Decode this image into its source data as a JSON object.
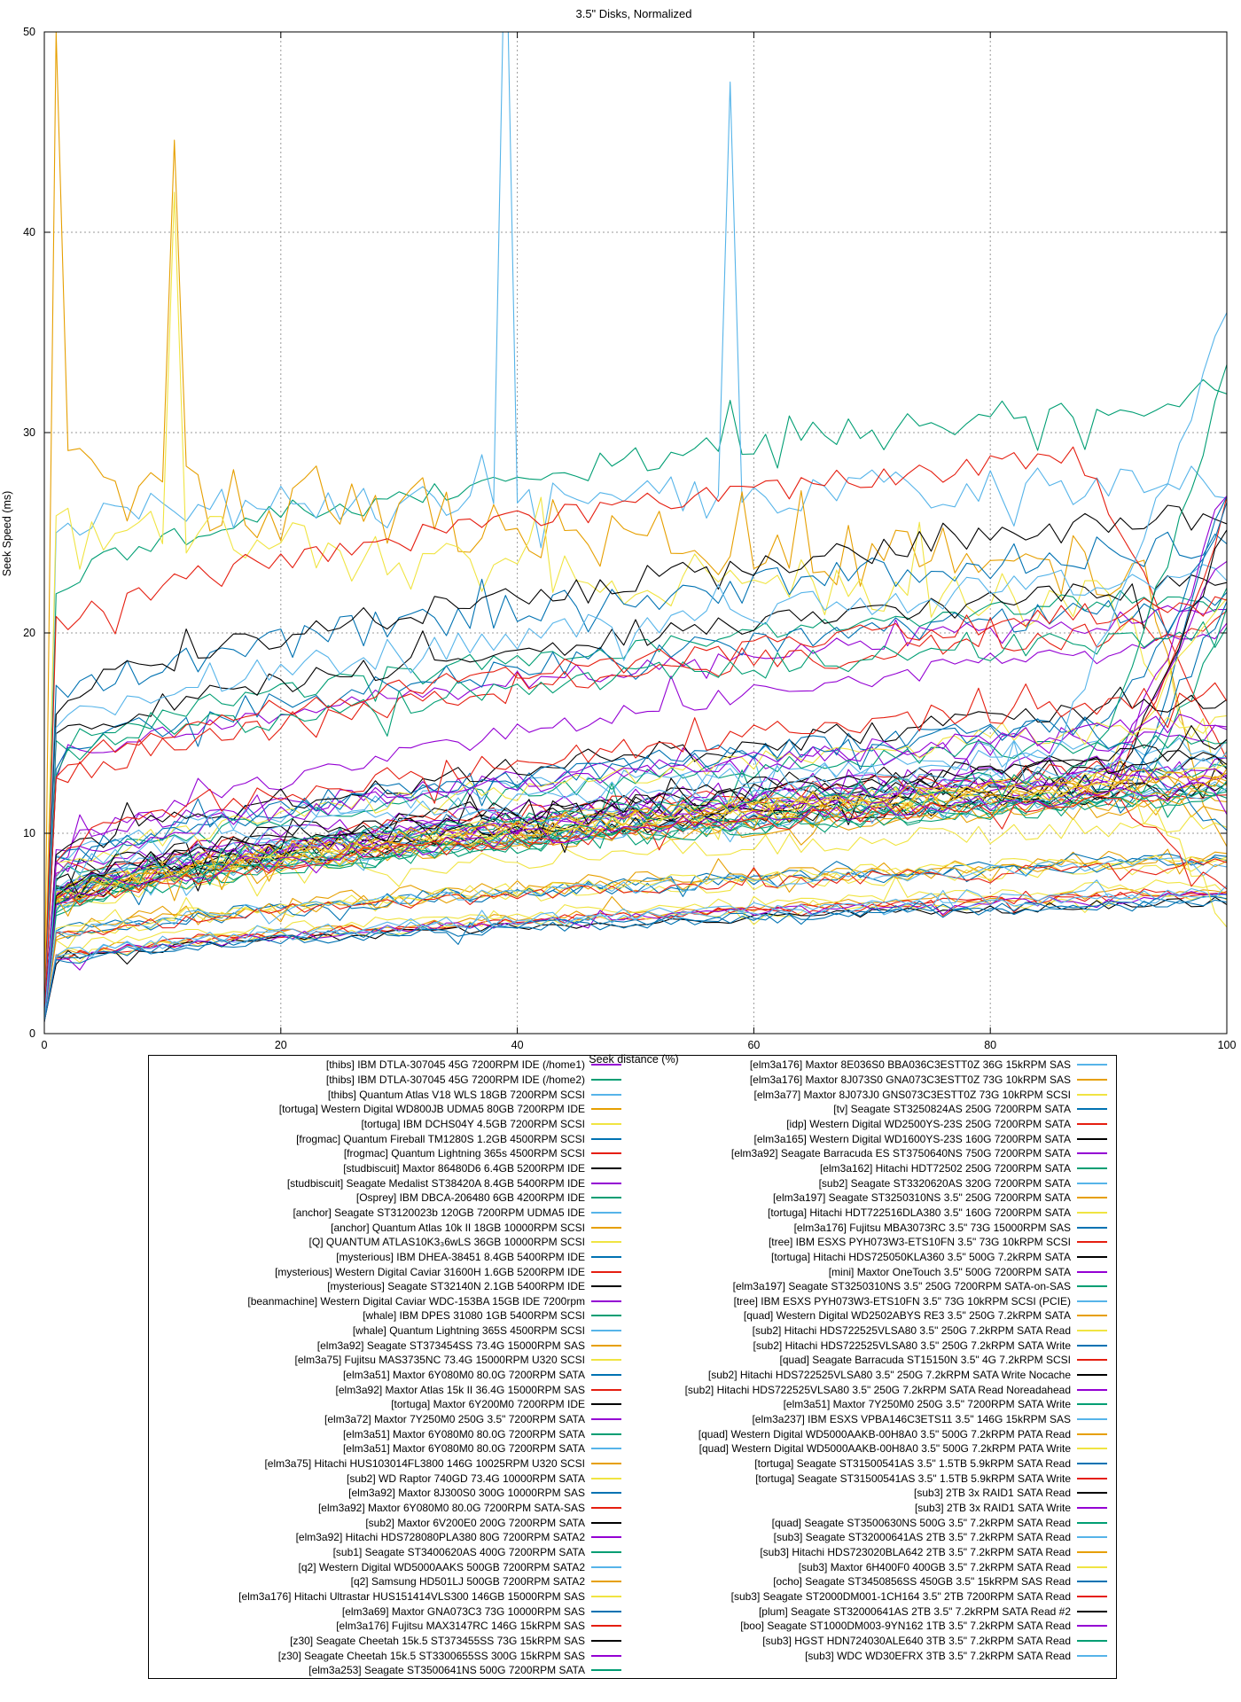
{
  "title": "3.5\" Disks, Normalized",
  "axes": {
    "xlabel": "Seek distance (%)",
    "ylabel": "Seek Speed (ms)"
  },
  "chart_data": {
    "type": "line",
    "title": "3.5\" Disks, Normalized",
    "xlabel": "Seek distance (%)",
    "ylabel": "Seek Speed (ms)",
    "xlim": [
      0,
      100
    ],
    "ylim": [
      0,
      50
    ],
    "x_ticks": [
      0,
      20,
      40,
      60,
      80,
      100
    ],
    "y_ticks": [
      0,
      10,
      20,
      30,
      40,
      50
    ],
    "grid": "dashed gray at major ticks",
    "legend_position": "below plot, two columns, right-aligned labels with line samples",
    "palette": [
      "#9400d3",
      "#009e73",
      "#56b4e9",
      "#e69f00",
      "#f0e442",
      "#0072b2",
      "#e51e10",
      "#000000"
    ],
    "series_note": "83 seek-speed curves; each rises from ~0 ms at 0% seek distance; y1=value near 1%, y100=value at 100% (estimated from pixels), noise=jitter amplitude (ms), spikes=[x,y] outliers, end=[from_x, final_y] end-of-range divergence",
    "series": [
      {
        "l": "[thibs] IBM DTLA-307045 45G 7200RPM IDE (/home1)",
        "a": 7.5,
        "b": 20,
        "n": 0.5
      },
      {
        "l": "[thibs] IBM DTLA-307045 45G 7200RPM IDE (/home2)",
        "a": 21.5,
        "b": 32,
        "n": 0.8
      },
      {
        "l": "[thibs] Quantum Atlas V18 WLS 18GB 7200RPM SCSI",
        "a": 25.5,
        "b": 27.5,
        "n": 1.0,
        "s": [
          [
            39,
            57
          ],
          [
            58,
            47.5
          ]
        ]
      },
      {
        "l": "[tortuga] Western Digital WD800JB UDMA5 80GB 7200RPM IDE",
        "a": 28.5,
        "b": 23,
        "n": 1.7,
        "s": [
          [
            1,
            50
          ],
          [
            11,
            44.6
          ]
        ],
        "e": [
          92,
          9
        ]
      },
      {
        "l": "[tortuga] IBM DCHS04Y 4.5GB 7200RPM SCSI",
        "a": 26.5,
        "b": 21,
        "n": 1.5,
        "s": [
          [
            11,
            42
          ]
        ],
        "e": [
          90,
          13
        ]
      },
      {
        "l": "[frogmac] Quantum Fireball TM1280S 1.2GB 4500RPM SCSI",
        "a": 16,
        "b": 24.5,
        "n": 0.9
      },
      {
        "l": "[frogmac] Quantum Lightning 365s 4500RPM SCSI",
        "a": 19.5,
        "b": 29.5,
        "n": 0.7,
        "e": [
          87,
          14
        ]
      },
      {
        "l": "[studbiscuit] Maxtor 86480D6 6.4GB 5200RPM IDE",
        "a": 15.5,
        "b": 26,
        "n": 0.7
      },
      {
        "l": "[studbiscuit] Seagate Medalist ST38420A 8.4GB 5400RPM IDE",
        "a": 12.5,
        "b": 21,
        "n": 0.6
      },
      {
        "l": "[Osprey] IBM DBCA-206480 6GB 4200RPM IDE",
        "a": 13.5,
        "b": 22,
        "n": 0.6
      },
      {
        "l": "[anchor] Seagate ST3120023b 120GB 7200RPM UDMA5 IDE",
        "a": 8.5,
        "b": 14.5,
        "n": 0.6
      },
      {
        "l": "[anchor] Quantum Atlas 10k II 18GB 10000RPM SCSI",
        "a": 6.5,
        "b": 11.5,
        "n": 0.5
      },
      {
        "l": "[Q] QUANTUM ATLAS10K3₃6wLS 36GB 10000RPM SCSI",
        "a": 6,
        "b": 10.5,
        "n": 0.5
      },
      {
        "l": "[mysterious] IBM DHEA-38451 8.4GB 5400RPM IDE",
        "a": 13,
        "b": 21.5,
        "n": 0.7
      },
      {
        "l": "[mysterious] Western Digital Caviar 31600H 1.6GB 5200RPM IDE",
        "a": 12,
        "b": 20.5,
        "n": 0.7
      },
      {
        "l": "[mysterious] Seagate ST32140N 2.1GB 5400RPM IDE",
        "a": 14,
        "b": 22.5,
        "n": 0.6
      },
      {
        "l": "[beanmachine] Western Digital Caviar WDC-153BA 15GB IDE 7200rpm",
        "a": 9,
        "b": 15,
        "n": 0.6
      },
      {
        "l": "[whale] IBM DPES 31080 1GB 5400RPM SCSI",
        "a": 13,
        "b": 20,
        "n": 0.7
      },
      {
        "l": "[whale] Quantum Lightning 365S 4500RPM SCSI",
        "a": 15,
        "b": 23,
        "n": 0.8
      },
      {
        "l": "[elm3a92] Seagate ST373454SS 73.4G 15000RPM SAS",
        "a": 3.6,
        "b": 7.2,
        "n": 0.25
      },
      {
        "l": "[elm3a75] Fujitsu MAS3735NC 73.4G 15000RPM U320 SCSI",
        "a": 3.8,
        "b": 7.5,
        "n": 0.3
      },
      {
        "l": "[elm3a51] Maxtor 6Y080M0 80.0G 7200RPM SATA",
        "a": 6.5,
        "b": 13,
        "n": 0.5,
        "e": [
          92,
          22
        ]
      },
      {
        "l": "[elm3a92] Maxtor Atlas 15k II 36.4G 15000RPM SAS",
        "a": 3.5,
        "b": 7,
        "n": 0.25
      },
      {
        "l": "[tortuga] Maxtor 6Y200M0 7200RPM IDE",
        "a": 6.8,
        "b": 13.5,
        "n": 0.5
      },
      {
        "l": "[elm3a72] Maxtor 7Y250M0 250G 3.5\" 7200RPM SATA",
        "a": 7,
        "b": 14,
        "n": 0.5,
        "e": [
          90,
          24
        ]
      },
      {
        "l": "[elm3a51] Maxtor 6Y080M0 80.0G 7200RPM SATA",
        "a": 6.6,
        "b": 13.2,
        "n": 0.5
      },
      {
        "l": "[elm3a51] Maxtor 6Y080M0 80.0G 7200RPM SATA",
        "a": 6.7,
        "b": 13.4,
        "n": 0.5
      },
      {
        "l": "[elm3a75] Hitachi HUS103014FL3800 146G 10025RPM U320 SCSI",
        "a": 4.8,
        "b": 9,
        "n": 0.4
      },
      {
        "l": "[sub2] WD Raptor 740GD 73.4G 10000RPM SATA",
        "a": 4.5,
        "b": 8.5,
        "n": 0.4
      },
      {
        "l": "[elm3a92] Maxtor 8J300S0 300G 10000RPM SAS",
        "a": 4.6,
        "b": 8.8,
        "n": 0.35
      },
      {
        "l": "[elm3a92] Maxtor 6Y080M0 80.0G 7200RPM SATA-SAS",
        "a": 6.9,
        "b": 13.6,
        "n": 0.5,
        "e": [
          91,
          26
        ]
      },
      {
        "l": "[sub2] Maxtor 6V200E0 200G 7200RPM SATA",
        "a": 6.3,
        "b": 12.5,
        "n": 0.45
      },
      {
        "l": "[elm3a92] Hitachi HDS728080PLA380 80G 7200RPM SATA2",
        "a": 6.4,
        "b": 12.8,
        "n": 0.5
      },
      {
        "l": "[sub1] Seagate ST3400620AS 400G 7200RPM SATA",
        "a": 5.8,
        "b": 12,
        "n": 0.45,
        "e": [
          92,
          21
        ]
      },
      {
        "l": "[q2] Western Digital WD5000AAKS 500GB 7200RPM SATA2",
        "a": 5.9,
        "b": 12.2,
        "n": 0.45
      },
      {
        "l": "[q2] Samsung HD501LJ 500GB 7200RPM SATA2",
        "a": 6.1,
        "b": 12.6,
        "n": 0.5
      },
      {
        "l": "[elm3a176] Hitachi Ultrastar HUS151414VLS300 146GB 15000RPM SAS",
        "a": 3.4,
        "b": 6.8,
        "n": 0.25
      },
      {
        "l": "[elm3a69] Maxtor GNA073C3 73G 10000RPM SAS",
        "a": 4.4,
        "b": 8.6,
        "n": 0.35
      },
      {
        "l": "[elm3a176] Fujitsu MAX3147RC 146G 15kRPM SAS",
        "a": 3.5,
        "b": 7,
        "n": 0.25
      },
      {
        "l": "[z30] Seagate Cheetah 15k.5 ST373455SS 73G 15kRPM SAS",
        "a": 3.3,
        "b": 6.6,
        "n": 0.25
      },
      {
        "l": "[z30] Seagate Cheetah 15k.5 ST3300655SS 300G 15kRPM SAS",
        "a": 3.4,
        "b": 6.9,
        "n": 0.25
      },
      {
        "l": "[elm3a253] Seagate ST3500641NS 500G 7200RPM SATA",
        "a": 5.7,
        "b": 11.8,
        "n": 0.45
      },
      {
        "l": "[elm3a176] Maxtor 8E036S0 BBA036C3ESTT0Z 36G 15kRPM SAS",
        "a": 3.6,
        "b": 7.1,
        "n": 0.3
      },
      {
        "l": "[elm3a176] Maxtor 8J073S0 GNA073C3ESTT0Z 73G 10kRPM SAS",
        "a": 4.5,
        "b": 8.7,
        "n": 0.35
      },
      {
        "l": "[elm3a77] Maxtor 8J073J0 GNS073C3ESTT0Z 73G 10kRPM SCSI",
        "a": 4.6,
        "b": 8.9,
        "n": 0.35
      },
      {
        "l": "[tv] Seagate ST3250824AS 250G 7200RPM SATA",
        "a": 6.2,
        "b": 12.4,
        "n": 0.5,
        "e": [
          92,
          28
        ]
      },
      {
        "l": "[idp] Western Digital WD2500YS-23S 250G 7200RPM SATA",
        "a": 6,
        "b": 12.1,
        "n": 0.45
      },
      {
        "l": "[elm3a165] Western Digital WD1600YS-23S 160G 7200RPM SATA",
        "a": 6.1,
        "b": 12.3,
        "n": 0.45
      },
      {
        "l": "[elm3a92] Seagate Barracuda ES ST3750640NS 750G 7200RPM SATA",
        "a": 6.5,
        "b": 13.1,
        "n": 0.5,
        "e": [
          90,
          27
        ]
      },
      {
        "l": "[elm3a162] Hitachi HDT72502 250G 7200RPM SATA",
        "a": 6.2,
        "b": 12.2,
        "n": 0.45
      },
      {
        "l": "[sub2] Seagate ST3320620AS 320G 7200RPM SATA",
        "a": 6,
        "b": 12,
        "n": 0.45
      },
      {
        "l": "[elm3a197] Seagate ST3250310NS 3.5\" 250G 7200RPM SATA",
        "a": 5.9,
        "b": 11.9,
        "n": 0.45
      },
      {
        "l": "[tortuga] Hitachi HDT722516DLA380 3.5\" 160G 7200RPM SATA",
        "a": 6.3,
        "b": 12.7,
        "n": 0.5,
        "e": [
          88,
          22
        ]
      },
      {
        "l": "[elm3a176] Fujitsu MBA3073RC 3.5\" 73G 15000RPM SAS",
        "a": 3.4,
        "b": 6.7,
        "n": 0.25
      },
      {
        "l": "[tree] IBM ESXS PYH073W3-ETS10FN 3.5\" 73G 10kRPM SCSI",
        "a": 4.4,
        "b": 8.5,
        "n": 0.35
      },
      {
        "l": "[tortuga] Hitachi HDS725050KLA360 3.5\" 500G 7.2kRPM SATA",
        "a": 6.4,
        "b": 12.9,
        "n": 0.5,
        "e": [
          90,
          25
        ]
      },
      {
        "l": "[mini] Maxtor OneTouch 3.5\" 500G 7200RPM SATA",
        "a": 6.6,
        "b": 13.3,
        "n": 0.5
      },
      {
        "l": "[elm3a197] Seagate ST3250310NS 3.5\" 250G 7200RPM SATA-on-SAS",
        "a": 5.8,
        "b": 11.7,
        "n": 0.45
      },
      {
        "l": "[tree] IBM ESXS PYH073W3-ETS10FN 3.5\" 73G 10kRPM SCSI (PCIE)",
        "a": 4.5,
        "b": 8.6,
        "n": 0.35
      },
      {
        "l": "[quad] Western Digital WD2502ABYS RE3 3.5\" 250G 7.2kRPM SATA",
        "a": 6.2,
        "b": 12.5,
        "n": 0.5
      },
      {
        "l": "[sub2] Hitachi HDS722525VLSA80 3.5\" 250G 7.2kRPM SATA Read",
        "a": 6.5,
        "b": 13,
        "n": 0.5
      },
      {
        "l": "[sub2] Hitachi HDS722525VLSA80 3.5\" 250G 7.2kRPM SATA Write",
        "a": 8,
        "b": 16,
        "n": 0.6,
        "e": [
          90,
          26
        ]
      },
      {
        "l": "[quad] Seagate Barracuda ST15150N 3.5\" 4G 7.2kRPM SCSI",
        "a": 12.5,
        "b": 21.5,
        "n": 0.6
      },
      {
        "l": "[sub2] Hitachi HDS722525VLSA80 3.5\" 250G 7.2kRPM SATA Write Nocache",
        "a": 8.2,
        "b": 16.5,
        "n": 0.6
      },
      {
        "l": "[sub2] Hitachi HDS722525VLSA80 3.5\" 250G 7.2kRPM SATA Read Noreadahead",
        "a": 6.6,
        "b": 13.2,
        "n": 0.5
      },
      {
        "l": "[elm3a51] Maxtor 7Y250M0 250G 3.5\" 7200RPM SATA Write",
        "a": 7.4,
        "b": 15,
        "n": 0.55
      },
      {
        "l": "[elm3a237] IBM ESXS VPBA146C3ETS11 3.5\" 146G 15kRPM SAS",
        "a": 3.5,
        "b": 6.9,
        "n": 0.3
      },
      {
        "l": "[quad] Western Digital WD5000AAKB-00H8A0 3.5\" 500G 7.2kRPM PATA Read",
        "a": 6.3,
        "b": 12.8,
        "n": 0.5
      },
      {
        "l": "[quad] Western Digital WD5000AAKB-00H8A0 3.5\" 500G 7.2kRPM PATA Write",
        "a": 7.6,
        "b": 15.5,
        "n": 0.55
      },
      {
        "l": "[tortuga] Seagate ST31500541AS 3.5\" 1.5TB 5.9kRPM SATA Read",
        "a": 7.8,
        "b": 16,
        "n": 0.55,
        "e": [
          88,
          10
        ]
      },
      {
        "l": "[tortuga] Seagate ST31500541AS 3.5\" 1.5TB 5.9kRPM SATA Write",
        "a": 8.4,
        "b": 17,
        "n": 0.6
      },
      {
        "l": "[sub3] 2TB 3x RAID1 SATA Read",
        "a": 7,
        "b": 14.2,
        "n": 0.5
      },
      {
        "l": "[sub3] 2TB 3x RAID1 SATA Write",
        "a": 7.7,
        "b": 15.6,
        "n": 0.55
      },
      {
        "l": "[quad] Seagate ST3500630NS 500G 3.5\" 7.2kRPM SATA Read",
        "a": 6.1,
        "b": 12.3,
        "n": 0.45
      },
      {
        "l": "[sub3] Seagate ST32000641AS 2TB 3.5\" 7.2kRPM SATA Read",
        "a": 6.7,
        "b": 13.6,
        "n": 0.5
      },
      {
        "l": "[sub3] Hitachi HDS723020BLA642 2TB 3.5\" 7.2kRPM SATA Read",
        "a": 6.4,
        "b": 13,
        "n": 0.5
      },
      {
        "l": "[sub3] Maxtor 6H400F0 400GB 3.5\" 7.2kRPM SATA Read",
        "a": 6.2,
        "b": 12.6,
        "n": 0.5,
        "e": [
          92,
          5.5
        ]
      },
      {
        "l": "[ocho] Seagate ST3450856SS 450GB 3.5\" 15kRPM SAS Read",
        "a": 3.3,
        "b": 6.5,
        "n": 0.25
      },
      {
        "l": "[sub3] Seagate ST2000DM001-1CH164 3.5\" 2TB 7200RPM SATA Read",
        "a": 5.9,
        "b": 12,
        "n": 0.45,
        "e": [
          90,
          7
        ]
      },
      {
        "l": "[plum] Seagate ST32000641AS 2TB 3.5\" 7.2kRPM SATA Read #2",
        "a": 6.8,
        "b": 13.8,
        "n": 0.5
      },
      {
        "l": "[boo] Seagate ST1000DM003-9YN162 1TB 3.5\" 7.2kRPM SATA Read",
        "a": 6,
        "b": 12.2,
        "n": 0.45
      },
      {
        "l": "[sub3] HGST HDN724030ALE640 3TB 3.5\" 7.2kRPM SATA Read",
        "a": 6.5,
        "b": 13.4,
        "n": 0.5,
        "e": [
          88,
          33
        ]
      },
      {
        "l": "[sub3] WDC WD30EFRX 3TB 3.5\" 7.2kRPM SATA Read",
        "a": 7.2,
        "b": 14.6,
        "n": 0.55,
        "e": [
          85,
          36
        ]
      }
    ],
    "legend_split": 42
  }
}
